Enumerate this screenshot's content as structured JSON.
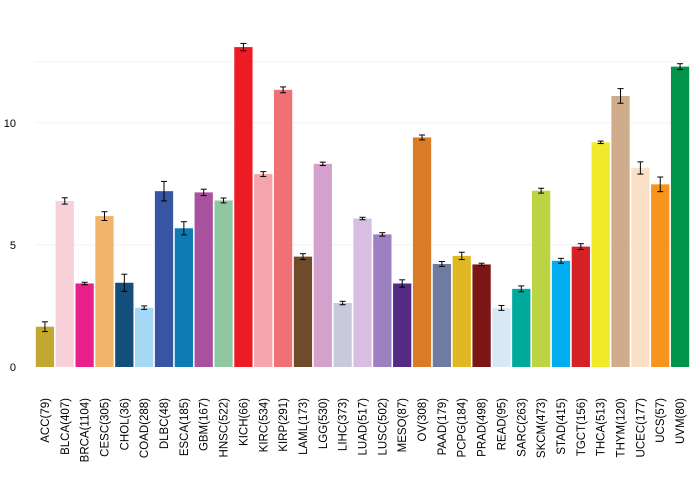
{
  "chart_data": {
    "type": "bar",
    "title": "",
    "xlabel": "",
    "ylabel": "",
    "ylim": [
      0,
      13.8
    ],
    "yticks": [
      0,
      5,
      10
    ],
    "grid": true,
    "categories": [
      "ACC(79)",
      "BLCA(407)",
      "BRCA(1104)",
      "CESC(305)",
      "CHOL(36)",
      "COAD(288)",
      "DLBC(48)",
      "ESCA(185)",
      "GBM(167)",
      "HNSC(522)",
      "KICH(66)",
      "KIRC(534)",
      "KIRP(291)",
      "LAML(173)",
      "LGG(530)",
      "LIHC(373)",
      "LUAD(517)",
      "LUSC(502)",
      "MESO(87)",
      "OV(308)",
      "PAAD(179)",
      "PCPG(184)",
      "PRAD(498)",
      "READ(95)",
      "SARC(263)",
      "SKCM(473)",
      "STAD(415)",
      "TGCT(156)",
      "THCA(513)",
      "THYM(120)",
      "UCEC(177)",
      "UCS(57)",
      "UVM(80)"
    ],
    "values": [
      1.65,
      6.8,
      3.42,
      6.18,
      3.45,
      2.43,
      7.2,
      5.68,
      7.15,
      6.82,
      13.1,
      7.9,
      11.35,
      4.52,
      8.32,
      2.62,
      6.08,
      5.43,
      3.42,
      9.4,
      4.22,
      4.55,
      4.2,
      2.42,
      3.2,
      7.22,
      4.35,
      4.93,
      9.2,
      11.1,
      8.15,
      7.48,
      12.3
    ],
    "errors": [
      0.2,
      0.13,
      0.05,
      0.18,
      0.35,
      0.07,
      0.4,
      0.27,
      0.13,
      0.1,
      0.15,
      0.1,
      0.12,
      0.12,
      0.07,
      0.07,
      0.05,
      0.07,
      0.15,
      0.1,
      0.1,
      0.15,
      0.05,
      0.1,
      0.12,
      0.1,
      0.1,
      0.12,
      0.05,
      0.3,
      0.25,
      0.3,
      0.12
    ],
    "colors": [
      "#c2a831",
      "#f7d0d8",
      "#e91f8c",
      "#f2b46a",
      "#134f7a",
      "#a4d8f5",
      "#3855a3",
      "#0f7bb5",
      "#a9509f",
      "#8fc8a0",
      "#ed1c24",
      "#f5a3ac",
      "#f07175",
      "#6e4b2a",
      "#d4a0cc",
      "#c8c9db",
      "#d6bfe0",
      "#9d80bf",
      "#532a84",
      "#d97b27",
      "#6e7ba3",
      "#e0b824",
      "#7b1615",
      "#d8e8f5",
      "#01a99c",
      "#bcd443",
      "#00aeef",
      "#d52026",
      "#f2e92a",
      "#cfac8b",
      "#fae1c6",
      "#f7941d",
      "#00934a"
    ]
  }
}
